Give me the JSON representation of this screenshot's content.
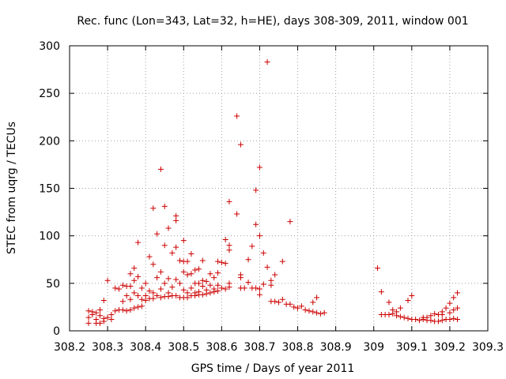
{
  "chart_data": {
    "type": "scatter",
    "title": "Rec. func (Lon=343, Lat=32, h=HE), days 308-309, 2011, window 001",
    "xlabel": "GPS time / Days of year 2011",
    "ylabel": "STEC from uqrg / TECUs",
    "xlim": [
      308.2,
      309.3
    ],
    "ylim": [
      0,
      300
    ],
    "xticks": [
      308.2,
      308.3,
      308.4,
      308.5,
      308.6,
      308.7,
      308.8,
      308.9,
      309,
      309.1,
      309.2,
      309.3
    ],
    "xtick_labels": [
      "308.2",
      "308.3",
      "308.4",
      "308.5",
      "308.6",
      "308.7",
      "308.8",
      "308.9",
      "309",
      "309.1",
      "309.2",
      "309.3"
    ],
    "yticks": [
      0,
      50,
      100,
      150,
      200,
      250,
      300
    ],
    "ytick_labels": [
      "0",
      "50",
      "100",
      "150",
      "200",
      "250",
      "300"
    ],
    "grid": true,
    "marker": "+",
    "color": "#cc0000",
    "points": [
      [
        308.25,
        21
      ],
      [
        308.25,
        14
      ],
      [
        308.25,
        8
      ],
      [
        308.26,
        20
      ],
      [
        308.26,
        17
      ],
      [
        308.27,
        19
      ],
      [
        308.27,
        12
      ],
      [
        308.27,
        8
      ],
      [
        308.28,
        22
      ],
      [
        308.28,
        16
      ],
      [
        308.28,
        8
      ],
      [
        308.29,
        32
      ],
      [
        308.29,
        13
      ],
      [
        308.29,
        10
      ],
      [
        308.3,
        53
      ],
      [
        308.3,
        14
      ],
      [
        308.31,
        17
      ],
      [
        308.31,
        12
      ],
      [
        308.32,
        45
      ],
      [
        308.32,
        21
      ],
      [
        308.33,
        44
      ],
      [
        308.33,
        22
      ],
      [
        308.34,
        48
      ],
      [
        308.34,
        31
      ],
      [
        308.34,
        22
      ],
      [
        308.35,
        47
      ],
      [
        308.35,
        37
      ],
      [
        308.35,
        21
      ],
      [
        308.36,
        60
      ],
      [
        308.36,
        47
      ],
      [
        308.36,
        33
      ],
      [
        308.36,
        22
      ],
      [
        308.37,
        66
      ],
      [
        308.37,
        53
      ],
      [
        308.37,
        40
      ],
      [
        308.37,
        24
      ],
      [
        308.38,
        93
      ],
      [
        308.38,
        57
      ],
      [
        308.38,
        37
      ],
      [
        308.38,
        25
      ],
      [
        308.39,
        45
      ],
      [
        308.39,
        33
      ],
      [
        308.39,
        26
      ],
      [
        308.4,
        50
      ],
      [
        308.4,
        37
      ],
      [
        308.4,
        32
      ],
      [
        308.41,
        78
      ],
      [
        308.41,
        42
      ],
      [
        308.41,
        34
      ],
      [
        308.42,
        129
      ],
      [
        308.42,
        70
      ],
      [
        308.42,
        40
      ],
      [
        308.42,
        34
      ],
      [
        308.43,
        102
      ],
      [
        308.43,
        56
      ],
      [
        308.43,
        37
      ],
      [
        308.44,
        170
      ],
      [
        308.44,
        62
      ],
      [
        308.44,
        44
      ],
      [
        308.44,
        35
      ],
      [
        308.45,
        131
      ],
      [
        308.45,
        90
      ],
      [
        308.45,
        50
      ],
      [
        308.45,
        36
      ],
      [
        308.46,
        108
      ],
      [
        308.46,
        55
      ],
      [
        308.46,
        40
      ],
      [
        308.46,
        36
      ],
      [
        308.47,
        82
      ],
      [
        308.47,
        46
      ],
      [
        308.47,
        37
      ],
      [
        308.48,
        121
      ],
      [
        308.48,
        116
      ],
      [
        308.48,
        88
      ],
      [
        308.48,
        54
      ],
      [
        308.48,
        37
      ],
      [
        308.49,
        74
      ],
      [
        308.49,
        50
      ],
      [
        308.49,
        35
      ],
      [
        308.5,
        95
      ],
      [
        308.5,
        73
      ],
      [
        308.5,
        62
      ],
      [
        308.5,
        43
      ],
      [
        308.5,
        35
      ],
      [
        308.51,
        73
      ],
      [
        308.51,
        59
      ],
      [
        308.51,
        40
      ],
      [
        308.51,
        35
      ],
      [
        308.52,
        81
      ],
      [
        308.52,
        60
      ],
      [
        308.52,
        45
      ],
      [
        308.52,
        37
      ],
      [
        308.53,
        64
      ],
      [
        308.53,
        50
      ],
      [
        308.53,
        40
      ],
      [
        308.53,
        37
      ],
      [
        308.54,
        65
      ],
      [
        308.54,
        50
      ],
      [
        308.54,
        41
      ],
      [
        308.54,
        38
      ],
      [
        308.55,
        74
      ],
      [
        308.55,
        53
      ],
      [
        308.55,
        47
      ],
      [
        308.55,
        38
      ],
      [
        308.56,
        52
      ],
      [
        308.56,
        43
      ],
      [
        308.56,
        39
      ],
      [
        308.57,
        60
      ],
      [
        308.57,
        48
      ],
      [
        308.57,
        40
      ],
      [
        308.58,
        56
      ],
      [
        308.58,
        44
      ],
      [
        308.58,
        41
      ],
      [
        308.59,
        73
      ],
      [
        308.59,
        61
      ],
      [
        308.59,
        48
      ],
      [
        308.59,
        42
      ],
      [
        308.6,
        72
      ],
      [
        308.6,
        45
      ],
      [
        308.61,
        96
      ],
      [
        308.61,
        71
      ],
      [
        308.61,
        44
      ],
      [
        308.62,
        136
      ],
      [
        308.62,
        90
      ],
      [
        308.62,
        85
      ],
      [
        308.62,
        50
      ],
      [
        308.62,
        46
      ],
      [
        308.64,
        226
      ],
      [
        308.64,
        123
      ],
      [
        308.65,
        196
      ],
      [
        308.65,
        59
      ],
      [
        308.65,
        56
      ],
      [
        308.65,
        45
      ],
      [
        308.66,
        45
      ],
      [
        308.67,
        75
      ],
      [
        308.67,
        51
      ],
      [
        308.68,
        45
      ],
      [
        308.68,
        89
      ],
      [
        308.69,
        148
      ],
      [
        308.69,
        112
      ],
      [
        308.69,
        45
      ],
      [
        308.7,
        172
      ],
      [
        308.7,
        100
      ],
      [
        308.7,
        44
      ],
      [
        308.7,
        38
      ],
      [
        308.71,
        82
      ],
      [
        308.71,
        49
      ],
      [
        308.72,
        283
      ],
      [
        308.72,
        67
      ],
      [
        308.73,
        53
      ],
      [
        308.73,
        48
      ],
      [
        308.73,
        31
      ],
      [
        308.74,
        59
      ],
      [
        308.74,
        31
      ],
      [
        308.75,
        30
      ],
      [
        308.76,
        73
      ],
      [
        308.76,
        33
      ],
      [
        308.77,
        28
      ],
      [
        308.78,
        115
      ],
      [
        308.78,
        28
      ],
      [
        308.79,
        25
      ],
      [
        308.8,
        24
      ],
      [
        308.81,
        26
      ],
      [
        308.82,
        22
      ],
      [
        308.83,
        21
      ],
      [
        308.84,
        20
      ],
      [
        308.84,
        30
      ],
      [
        308.85,
        35
      ],
      [
        308.85,
        19
      ],
      [
        308.86,
        18
      ],
      [
        308.87,
        19
      ],
      [
        309.01,
        66
      ],
      [
        309.02,
        41
      ],
      [
        309.02,
        17
      ],
      [
        309.03,
        17
      ],
      [
        309.04,
        30
      ],
      [
        309.04,
        17
      ],
      [
        309.05,
        22
      ],
      [
        309.05,
        18
      ],
      [
        309.06,
        20
      ],
      [
        309.06,
        16
      ],
      [
        309.07,
        24
      ],
      [
        309.07,
        15
      ],
      [
        309.08,
        14
      ],
      [
        309.09,
        32
      ],
      [
        309.09,
        13
      ],
      [
        309.1,
        37
      ],
      [
        309.1,
        12
      ],
      [
        309.11,
        12
      ],
      [
        309.12,
        11
      ],
      [
        309.13,
        14
      ],
      [
        309.13,
        12
      ],
      [
        309.14,
        14
      ],
      [
        309.14,
        11
      ],
      [
        309.15,
        16
      ],
      [
        309.15,
        11
      ],
      [
        309.16,
        18
      ],
      [
        309.16,
        10
      ],
      [
        309.17,
        17
      ],
      [
        309.17,
        10
      ],
      [
        309.18,
        20
      ],
      [
        309.18,
        17
      ],
      [
        309.18,
        11
      ],
      [
        309.19,
        24
      ],
      [
        309.19,
        12
      ],
      [
        309.2,
        29
      ],
      [
        309.2,
        19
      ],
      [
        309.2,
        12
      ],
      [
        309.21,
        35
      ],
      [
        309.21,
        22
      ],
      [
        309.21,
        13
      ],
      [
        309.22,
        40
      ],
      [
        309.22,
        24
      ],
      [
        309.22,
        12
      ]
    ]
  }
}
